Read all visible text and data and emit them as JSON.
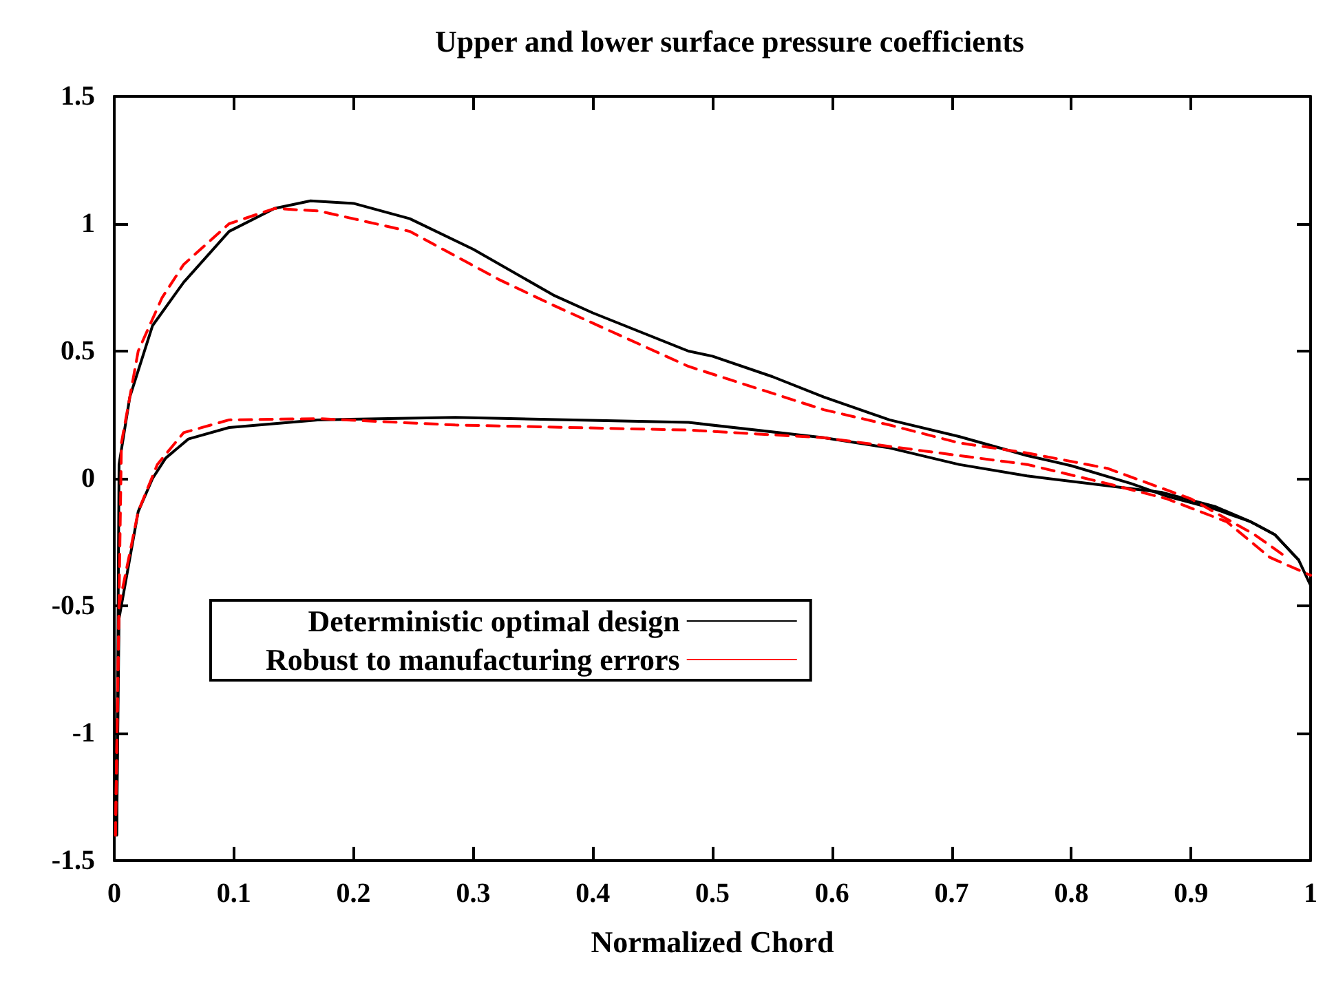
{
  "chart_data": {
    "type": "line",
    "title": "Upper and lower surface pressure coefficients",
    "xlabel": "Normalized Chord",
    "xlim": [
      0,
      1
    ],
    "xticks": [
      0,
      0.1,
      0.2,
      0.3,
      0.4,
      0.5,
      0.6,
      0.7,
      0.8,
      0.9,
      1
    ],
    "ylim": [
      -1.5,
      1.5
    ],
    "yticks": [
      -1.5,
      -1,
      -0.5,
      0,
      0.5,
      1,
      1.5
    ],
    "grid": false,
    "legend": "center left",
    "marker": "none",
    "series": [
      {
        "name": "Deterministic optimal design",
        "color": "#000000",
        "line_style": "solid",
        "x": [
          0.002,
          0.004,
          0.013,
          0.032,
          0.058,
          0.096,
          0.134,
          0.164,
          0.2,
          0.247,
          0.3,
          0.367,
          0.4,
          0.48,
          0.5,
          0.55,
          0.593,
          0.648,
          0.706,
          0.763,
          0.8,
          0.85,
          0.88,
          0.92,
          0.95,
          0.97,
          0.99
        ],
        "values": [
          -1.4,
          0.055,
          0.32,
          0.6,
          0.77,
          0.97,
          1.06,
          1.09,
          1.08,
          1.02,
          0.9,
          0.72,
          0.65,
          0.5,
          0.48,
          0.4,
          0.32,
          0.23,
          0.165,
          0.09,
          0.05,
          -0.02,
          -0.07,
          -0.12,
          -0.17,
          -0.22,
          -0.32
        ]
      },
      {
        "color": "#000000",
        "line_style": "solid",
        "x": [
          0.002,
          0.004,
          0.02,
          0.032,
          0.043,
          0.062,
          0.096,
          0.17,
          0.285,
          0.48,
          0.593,
          0.648,
          0.706,
          0.763,
          0.876,
          0.92,
          0.95,
          0.97,
          0.99,
          1.0
        ],
        "values": [
          -1.4,
          -0.55,
          -0.13,
          0.0,
          0.08,
          0.155,
          0.2,
          0.23,
          0.24,
          0.22,
          0.16,
          0.12,
          0.055,
          0.01,
          -0.055,
          -0.11,
          -0.17,
          -0.22,
          -0.32,
          -0.42
        ]
      },
      {
        "name": "Robust to manufacturing errors",
        "color": "#ff0000",
        "line_style": "dashed",
        "x": [
          0.001,
          0.006,
          0.02,
          0.04,
          0.058,
          0.096,
          0.134,
          0.171,
          0.247,
          0.322,
          0.367,
          0.48,
          0.593,
          0.648,
          0.706,
          0.763,
          0.83,
          0.9,
          0.953,
          0.977
        ],
        "values": [
          -1.4,
          0.14,
          0.5,
          0.71,
          0.84,
          1.0,
          1.06,
          1.05,
          0.97,
          0.78,
          0.68,
          0.44,
          0.27,
          0.21,
          0.14,
          0.1,
          0.04,
          -0.08,
          -0.22,
          -0.3
        ]
      },
      {
        "color": "#ff0000",
        "line_style": "dashed",
        "x": [
          0.001,
          0.004,
          0.02,
          0.036,
          0.058,
          0.096,
          0.17,
          0.285,
          0.48,
          0.593,
          0.706,
          0.763,
          0.83,
          0.88,
          0.93,
          0.966,
          1.0
        ],
        "values": [
          -1.4,
          -0.5,
          -0.13,
          0.055,
          0.18,
          0.23,
          0.235,
          0.21,
          0.19,
          0.16,
          0.09,
          0.055,
          -0.02,
          -0.08,
          -0.17,
          -0.31,
          -0.38
        ]
      }
    ]
  }
}
